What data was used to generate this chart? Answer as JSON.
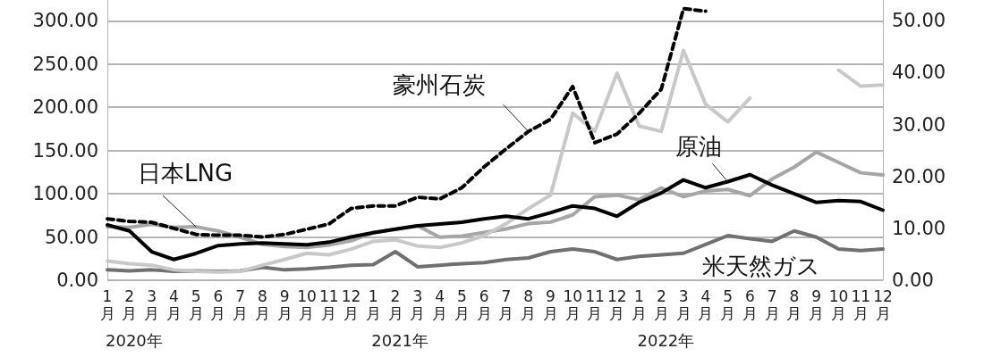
{
  "chart_data": {
    "type": "line",
    "categories": [
      "1月",
      "2月",
      "3月",
      "4月",
      "5月",
      "6月",
      "7月",
      "8月",
      "9月",
      "10月",
      "11月",
      "12月",
      "1月",
      "2月",
      "3月",
      "4月",
      "5月",
      "6月",
      "7月",
      "8月",
      "9月",
      "10月",
      "11月",
      "12月",
      "1月",
      "2月",
      "3月",
      "4月",
      "5月",
      "6月",
      "7月",
      "8月",
      "9月",
      "10月",
      "11月",
      "12月"
    ],
    "series": [
      {
        "name": "豪州石炭",
        "color": "#000000",
        "line_style": "dashed",
        "values": [
          71,
          68,
          67,
          60,
          53,
          52,
          52,
          50,
          53,
          59,
          65,
          83,
          86,
          86,
          96,
          94,
          107,
          131,
          152,
          172,
          186,
          224,
          159,
          169,
          193,
          221,
          314,
          311,
          null,
          null,
          null,
          null,
          null,
          null,
          null,
          null
        ]
      },
      {
        "name": "原油",
        "color": "#000000",
        "values": [
          64,
          57,
          33,
          24,
          31,
          40,
          42,
          43,
          42,
          41,
          44,
          50,
          55,
          59,
          63,
          65,
          67,
          71,
          74,
          71,
          78,
          86,
          83,
          74,
          90,
          101,
          116,
          107,
          114,
          122,
          110,
          100,
          90,
          92,
          91,
          81
        ]
      },
      {
        "name": "日本LNG",
        "color": "#a6a6a6",
        "axis": "y2",
        "values": [
          10.3,
          10.2,
          10.8,
          10.2,
          10.3,
          9.5,
          8.3,
          6.9,
          6.5,
          6.3,
          6.8,
          7.6,
          9.2,
          9.8,
          10.5,
          8.3,
          8.5,
          9.2,
          9.9,
          10.9,
          11.2,
          12.6,
          16.1,
          16.4,
          15.5,
          17.8,
          16.1,
          17.2,
          17.5,
          16.3,
          19.5,
          21.8,
          24.7,
          22.7,
          20.7,
          20.3
        ]
      },
      {
        "name": "米天然ガス",
        "color": "#707070",
        "axis": "y2",
        "values": [
          2.0,
          1.8,
          2.0,
          1.7,
          1.8,
          1.7,
          1.8,
          2.5,
          2.0,
          2.2,
          2.5,
          2.9,
          3.0,
          5.5,
          2.6,
          2.9,
          3.2,
          3.4,
          4.0,
          4.3,
          5.5,
          6.0,
          5.5,
          4.0,
          4.6,
          4.9,
          5.2,
          6.9,
          8.6,
          8.0,
          7.5,
          9.5,
          8.3,
          6.0,
          5.7,
          6.0
        ]
      },
      {
        "color": "#c8c8c8",
        "axis": "y2",
        "values": [
          3.7,
          3.2,
          2.9,
          2.0,
          1.7,
          1.6,
          1.7,
          2.9,
          4.0,
          5.2,
          4.9,
          6.0,
          7.5,
          7.8,
          6.6,
          6.3,
          7.2,
          8.6,
          10.9,
          13.8,
          16.4,
          32.2,
          28.7,
          39.9,
          29.7,
          28.7,
          44.3,
          33.9,
          30.5,
          35.1,
          null,
          null,
          null,
          40.5,
          37.4,
          37.6
        ]
      }
    ],
    "ylim": [
      0,
      324
    ],
    "yticks": [
      {
        "value": 0,
        "label": "0.00"
      },
      {
        "value": 50,
        "label": "50.00"
      },
      {
        "value": 100,
        "label": "100.00"
      },
      {
        "value": 150,
        "label": "150.00"
      },
      {
        "value": 200,
        "label": "200.00"
      },
      {
        "value": 250,
        "label": "250.00"
      },
      {
        "value": 300,
        "label": "300.00"
      }
    ],
    "y2lim": [
      0,
      54
    ],
    "y2ticks": [
      {
        "value": 0,
        "label": "0.00"
      },
      {
        "value": 10,
        "label": "10.00"
      },
      {
        "value": 20,
        "label": "20.00"
      },
      {
        "value": 30,
        "label": "30.00"
      },
      {
        "value": 40,
        "label": "40.00"
      },
      {
        "value": 50,
        "label": "50.00"
      }
    ],
    "annotations": [
      "2020年",
      "2021年",
      "2022年"
    ],
    "grid": "y",
    "legend": false,
    "marker": "none",
    "line_style": "solid"
  }
}
